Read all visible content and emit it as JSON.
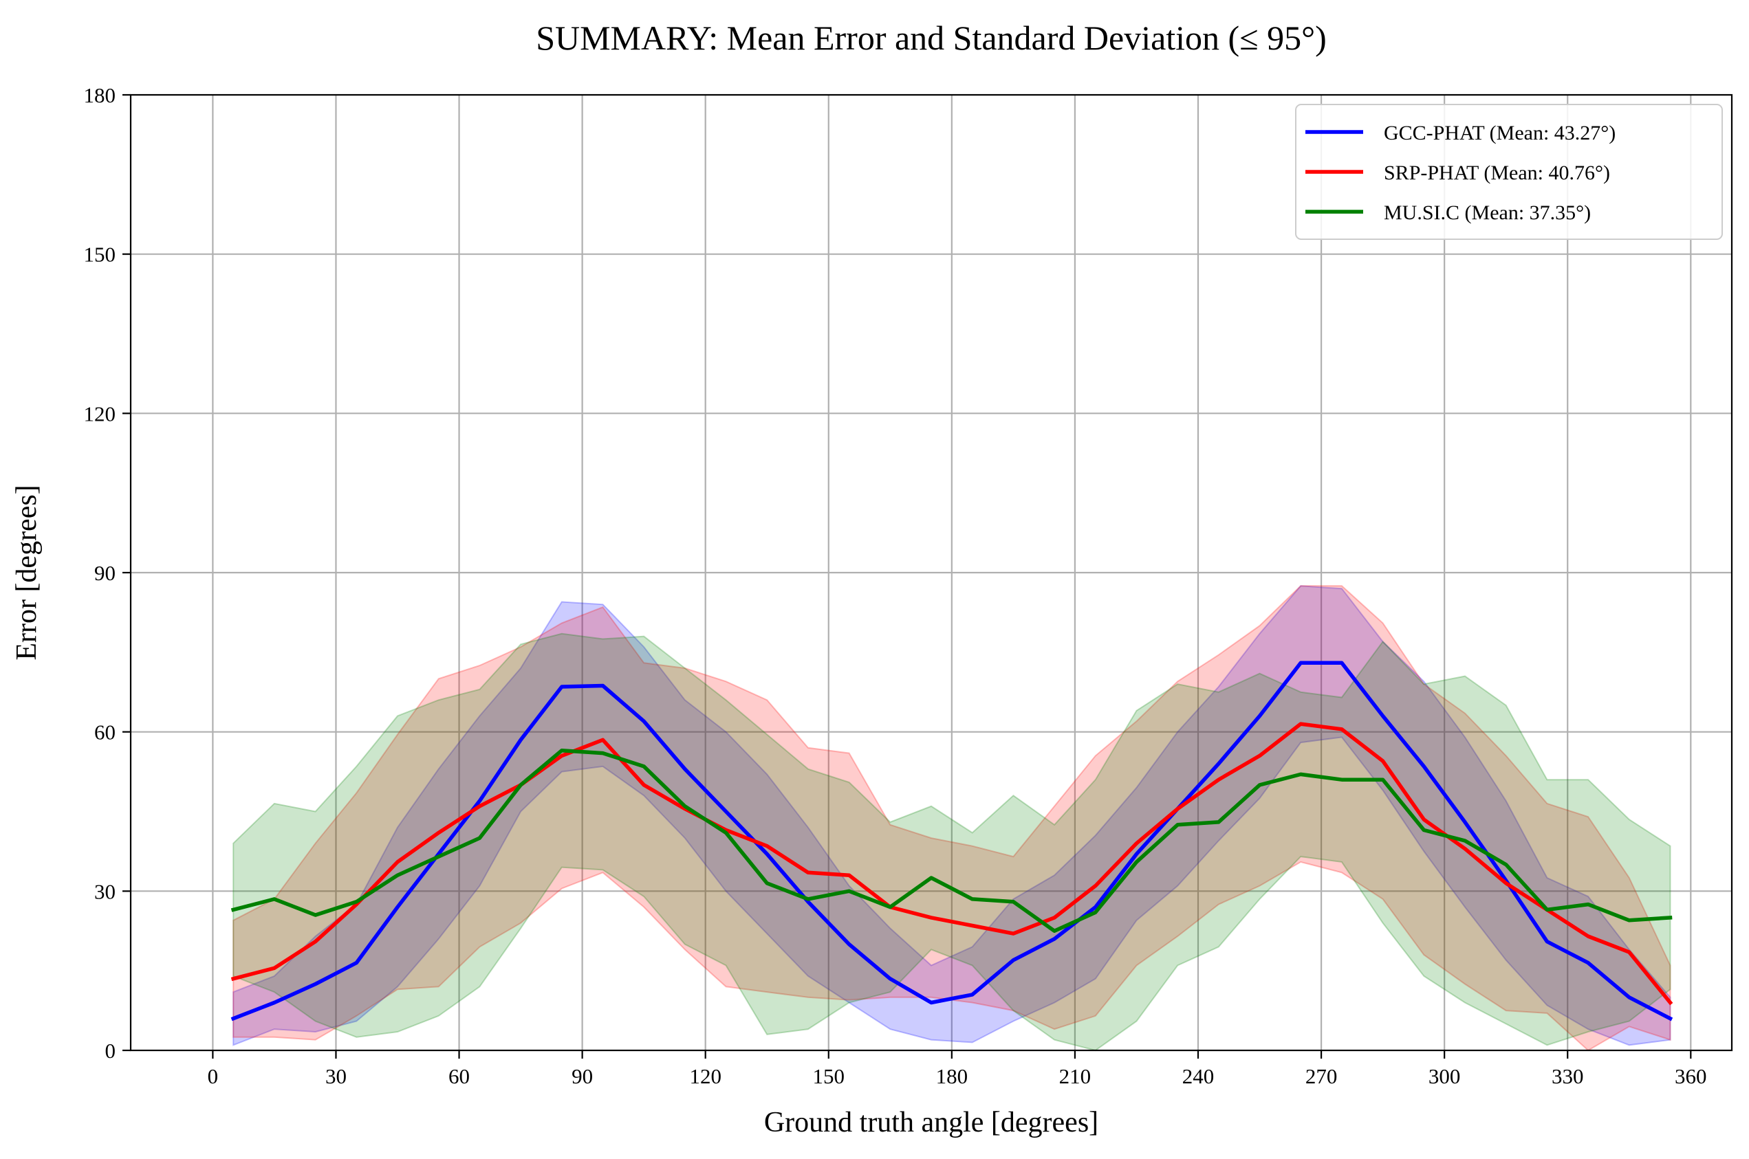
{
  "chart_data": {
    "type": "line",
    "title": "SUMMARY: Mean Error and Standard Deviation (≤ 95°)",
    "xlabel": "Ground truth angle [degrees]",
    "ylabel": "Error [degrees]",
    "xlim": [
      -20,
      370
    ],
    "ylim": [
      0,
      180
    ],
    "xticks": [
      0,
      30,
      60,
      90,
      120,
      150,
      180,
      210,
      240,
      270,
      300,
      330,
      360
    ],
    "yticks": [
      0,
      30,
      60,
      90,
      120,
      150,
      180
    ],
    "grid": true,
    "legend_position": "top-right",
    "x": [
      5,
      15,
      25,
      35,
      45,
      55,
      65,
      75,
      85,
      95,
      105,
      115,
      125,
      135,
      145,
      155,
      165,
      175,
      185,
      195,
      205,
      215,
      225,
      235,
      245,
      255,
      265,
      275,
      285,
      295,
      305,
      315,
      325,
      335,
      345,
      355
    ],
    "series": [
      {
        "name": "GCC-PHAT (Mean: 43.27°)",
        "color": "#0000ff",
        "mean": [
          6,
          9,
          12.5,
          16.5,
          27,
          37,
          47,
          58.5,
          68.5,
          68.7,
          62,
          53,
          45,
          37,
          28,
          20,
          13.5,
          9,
          10.5,
          17,
          21,
          27,
          37,
          45.5,
          54,
          63,
          73,
          73,
          63,
          53.5,
          43,
          32,
          20.5,
          16.5,
          10,
          6
        ],
        "lower": [
          1,
          4,
          3.5,
          5.5,
          12,
          21,
          31,
          45,
          52.5,
          53.5,
          48,
          40,
          30,
          22,
          14,
          9,
          4,
          2,
          1.5,
          5.5,
          9,
          13.5,
          24.5,
          31,
          39.5,
          47.5,
          58,
          59,
          49,
          37.5,
          27,
          17,
          8.5,
          4,
          1,
          2
        ],
        "upper": [
          11,
          14,
          21.5,
          27.5,
          42,
          53,
          63,
          72,
          84.5,
          84,
          76,
          66,
          60,
          52,
          42,
          31,
          23,
          16,
          19.5,
          28.5,
          33,
          40.5,
          49.5,
          60,
          68.5,
          78.5,
          87.5,
          87,
          77,
          69.5,
          59,
          47,
          32.5,
          29,
          19,
          10
        ]
      },
      {
        "name": "SRP-PHAT (Mean: 40.76°)",
        "color": "#ff0000",
        "mean": [
          13.5,
          15.5,
          20.5,
          27.5,
          35.5,
          41,
          46,
          50,
          55.5,
          58.5,
          50,
          45.5,
          41.5,
          38.5,
          33.5,
          33,
          27,
          25,
          23.5,
          22,
          25,
          31,
          39,
          45.5,
          51,
          55.5,
          61.5,
          60.5,
          54.5,
          43.5,
          38,
          31.5,
          26.5,
          21.5,
          18.5,
          9
        ],
        "lower": [
          2.5,
          2.5,
          2,
          6.5,
          11.5,
          12,
          19.5,
          24,
          30.5,
          33.5,
          27,
          19,
          12,
          11,
          10,
          9.5,
          10,
          10,
          9,
          7.5,
          4,
          6.5,
          16,
          21.5,
          27.5,
          31,
          35.5,
          33.5,
          28.5,
          18,
          12.5,
          7.5,
          7,
          0,
          4.5,
          2
        ],
        "upper": [
          24.5,
          28.5,
          39,
          48.5,
          59.5,
          70,
          72.5,
          76,
          80.5,
          83.5,
          73,
          72,
          69.5,
          66,
          57,
          56,
          42.5,
          40,
          38.5,
          36.5,
          46,
          55.5,
          62,
          69.5,
          74.5,
          80,
          87.5,
          87.5,
          80.5,
          69,
          63.5,
          55.5,
          46.5,
          44,
          32.5,
          16
        ]
      },
      {
        "name": "MU.SI.C (Mean: 37.35°)",
        "color": "#008000",
        "mean": [
          26.5,
          28.5,
          25.5,
          28,
          33,
          36.5,
          40,
          50,
          56.5,
          56,
          53.5,
          46,
          41,
          31.5,
          28.5,
          30,
          27,
          32.5,
          28.5,
          28,
          22.5,
          26,
          35.5,
          42.5,
          43,
          50,
          52,
          51,
          51,
          41.5,
          39.5,
          35,
          26.5,
          27.5,
          24.5,
          25
        ],
        "lower": [
          14,
          11,
          5.5,
          2.5,
          3.5,
          6.5,
          12,
          23,
          34.5,
          34,
          29,
          20,
          16,
          3,
          4,
          9,
          11,
          19,
          16,
          7.5,
          2,
          -1,
          5.5,
          16,
          19.5,
          28.5,
          36.5,
          35.5,
          24,
          14,
          9,
          5,
          1,
          3.5,
          5.5,
          11.5
        ],
        "upper": [
          39,
          46.5,
          45,
          53.5,
          63,
          66,
          68,
          76.5,
          78.5,
          77.5,
          78,
          72,
          66,
          59.5,
          53,
          50.5,
          43,
          46,
          41,
          48,
          42.5,
          51,
          64,
          69,
          67.5,
          71,
          67.5,
          66.5,
          77,
          69,
          70.5,
          65,
          51,
          51,
          43.5,
          38.5
        ]
      }
    ]
  }
}
